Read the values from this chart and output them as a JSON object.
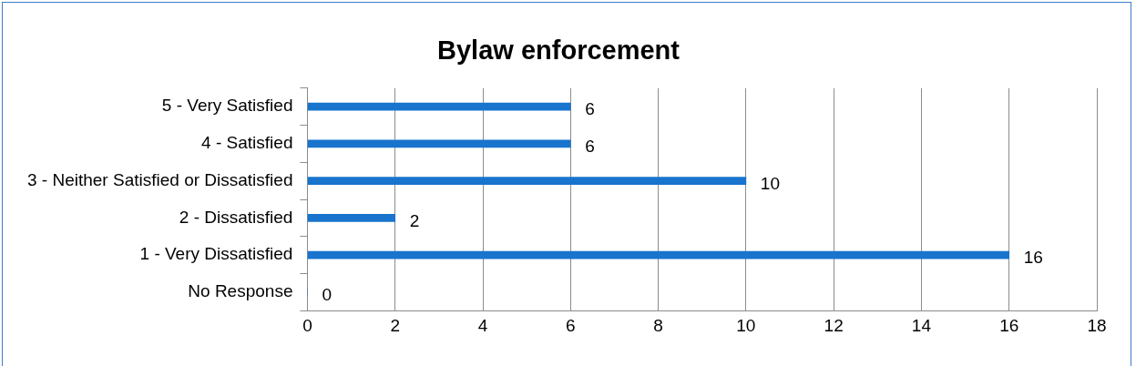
{
  "chart_data": {
    "type": "bar",
    "orientation": "horizontal",
    "title": "Bylaw enforcement",
    "categories": [
      "5 - Very Satisfied",
      "4 - Satisfied",
      "3 - Neither Satisfied or Dissatisfied",
      "2 - Dissatisfied",
      "1 - Very Dissatisfied",
      "No Response"
    ],
    "values": [
      6,
      6,
      10,
      2,
      16,
      0
    ],
    "color": "#1874cd",
    "xlim": [
      0,
      18
    ],
    "xticks": [
      0,
      2,
      4,
      6,
      8,
      10,
      12,
      14,
      16,
      18
    ],
    "grid": "x",
    "data_labels": true,
    "legend": false
  }
}
